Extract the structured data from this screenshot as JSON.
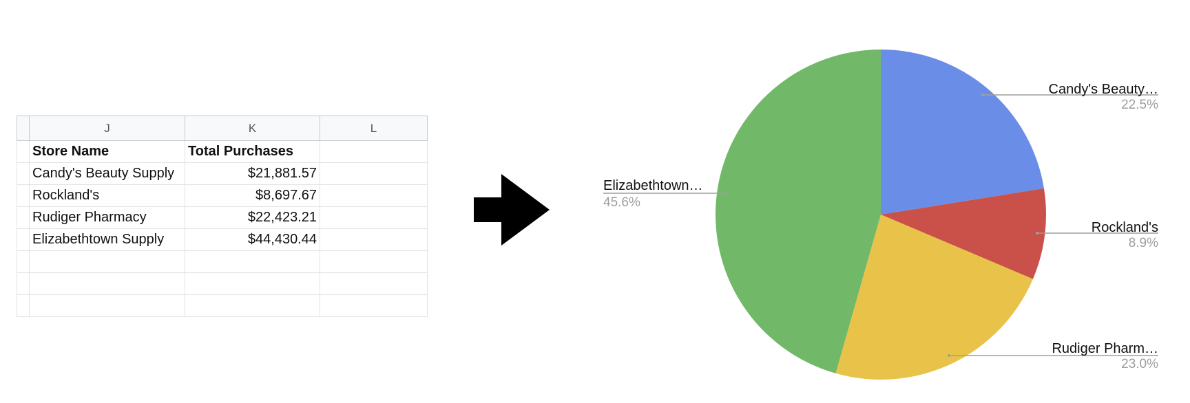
{
  "spreadsheet": {
    "column_headers": [
      "J",
      "K",
      "L"
    ],
    "header_row": [
      "Store Name",
      "Total Purchases"
    ],
    "rows": [
      [
        "Candy's Beauty Supply",
        "$21,881.57"
      ],
      [
        "Rockland's",
        "$8,697.67"
      ],
      [
        "Rudiger Pharmacy",
        "$22,423.21"
      ],
      [
        "Elizabethtown Supply",
        "$44,430.44"
      ]
    ]
  },
  "arrow_icon": "right-arrow-icon",
  "chart_data": {
    "type": "pie",
    "slices": [
      {
        "label": "Candy's Beauty…",
        "value": 21881.57,
        "percent_label": "22.5%",
        "color": "#6a8ee8"
      },
      {
        "label": "Rockland's",
        "value": 8697.67,
        "percent_label": "8.9%",
        "color": "#c95149"
      },
      {
        "label": "Rudiger Pharm…",
        "value": 22423.21,
        "percent_label": "23.0%",
        "color": "#e9c349"
      },
      {
        "label": "Elizabethtown…",
        "value": 44430.44,
        "percent_label": "45.6%",
        "color": "#71b868"
      }
    ],
    "start_angle": "12 o'clock",
    "direction": "clockwise",
    "legend": "none"
  }
}
